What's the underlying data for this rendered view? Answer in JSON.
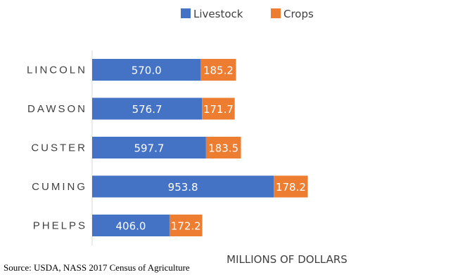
{
  "chart_data": {
    "type": "bar",
    "orientation": "horizontal",
    "stacked": true,
    "categories": [
      "LINCOLN",
      "DAWSON",
      "CUSTER",
      "CUMING",
      "PHELPS"
    ],
    "series": [
      {
        "name": "Livestock",
        "color": "#4472C4",
        "values": [
          570.0,
          576.7,
          597.7,
          953.8,
          406.0
        ],
        "labels": [
          "570.0",
          "576.7",
          "597.7",
          "953.8",
          "406.0"
        ]
      },
      {
        "name": "Crops",
        "color": "#ED7D31",
        "values": [
          185.2,
          171.7,
          183.5,
          178.2,
          172.2
        ],
        "labels": [
          "185.2",
          "171.7",
          "183.5",
          "178.2",
          "172.2"
        ]
      }
    ],
    "xlabel": "MILLIONS OF DOLLARS",
    "ylabel": "",
    "xlim": [
      0,
      1200
    ],
    "legend_position": "top",
    "grid": false
  },
  "source": "Source: USDA, NASS 2017 Census of Agriculture"
}
